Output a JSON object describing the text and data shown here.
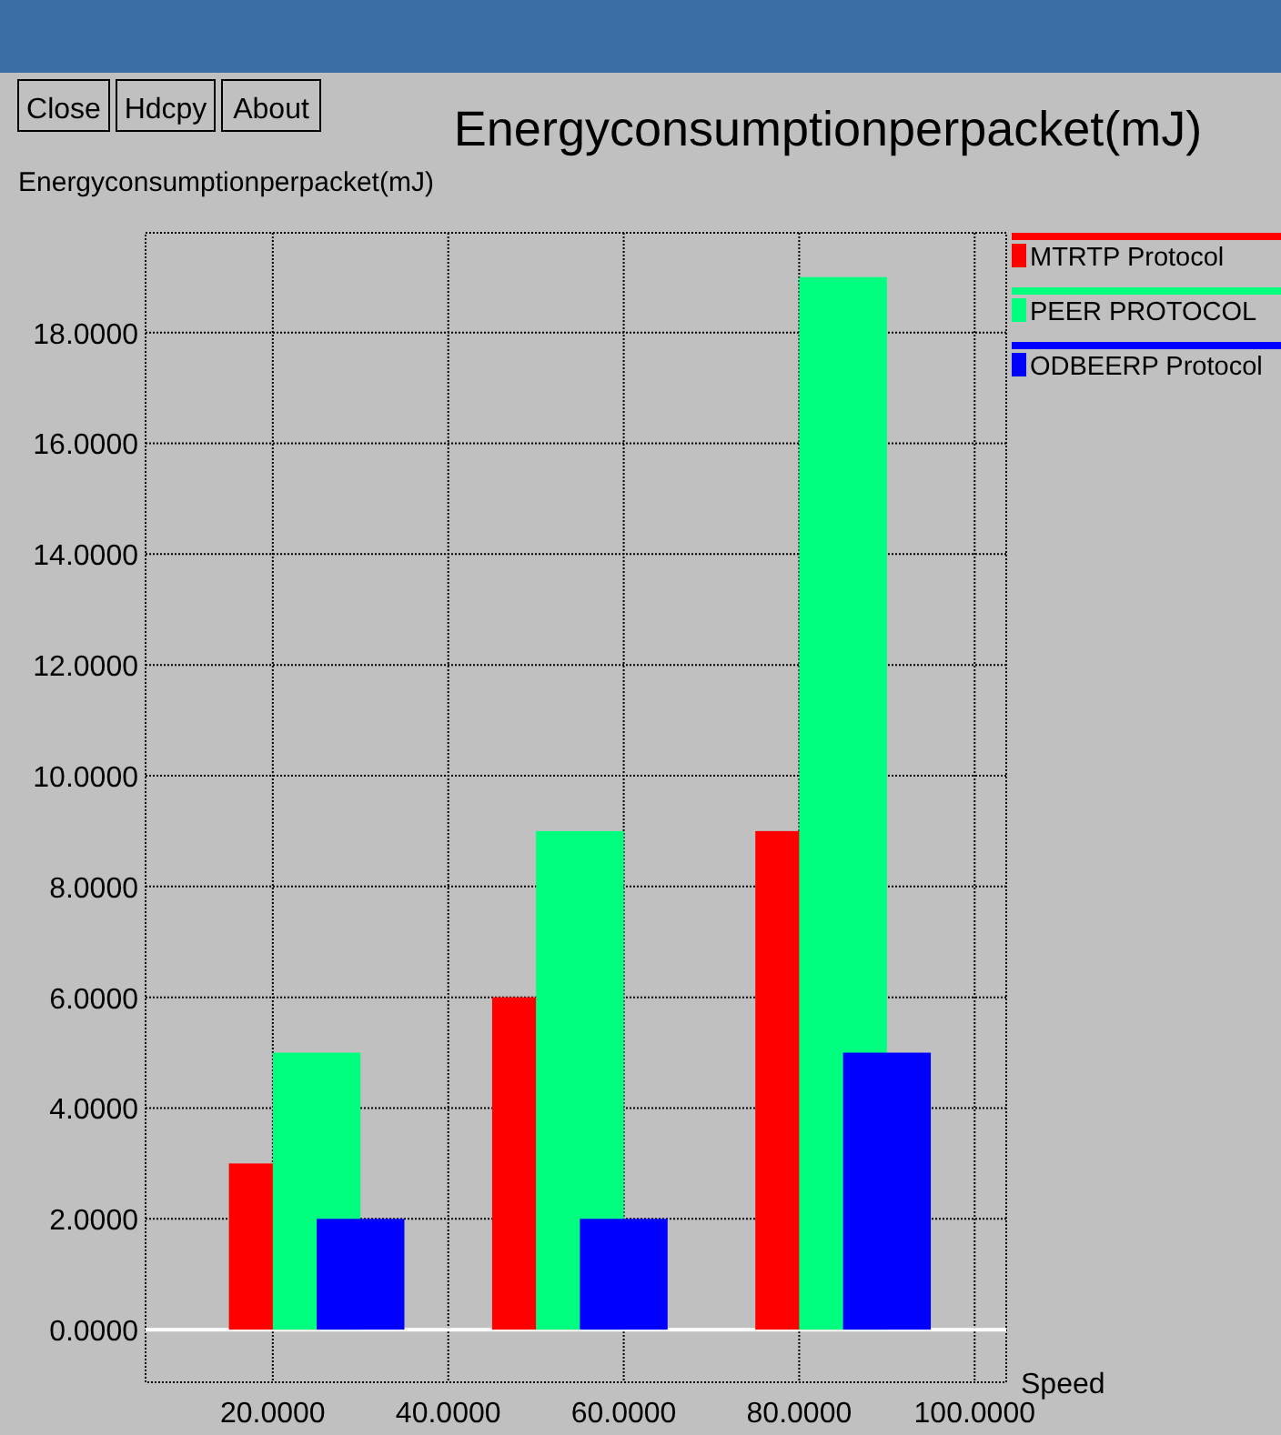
{
  "chart_data": {
    "type": "bar",
    "title": "Energyconsumptionperpacket(mJ)",
    "ylabel": "Energyconsumptionperpacket(mJ)",
    "xlabel": "Speed",
    "annotations": [
      "Close",
      "Hdcpy",
      "About"
    ],
    "series": [
      {
        "name": "MTRTP Protocol",
        "color": "#ff0000",
        "x": [
          20,
          50,
          80
        ],
        "values": [
          3,
          6,
          9
        ]
      },
      {
        "name": "PEER PROTOCOL",
        "color": "#00ff7f",
        "x": [
          25,
          55,
          85
        ],
        "values": [
          5,
          9,
          19
        ]
      },
      {
        "name": "ODBEERP Protocol",
        "color": "#0000ff",
        "x": [
          30,
          60,
          90
        ],
        "values": [
          2,
          2,
          5
        ]
      }
    ],
    "xlim": [
      5.5,
      103.6
    ],
    "xticks": [
      {
        "value": 20,
        "label": "20.0000"
      },
      {
        "value": 40,
        "label": "40.0000"
      },
      {
        "value": 60,
        "label": "60.0000"
      },
      {
        "value": 80,
        "label": "80.0000"
      },
      {
        "value": 100,
        "label": "100.0000"
      }
    ],
    "ylim": [
      -0.95,
      19.8
    ],
    "yticks": [
      {
        "value": 0,
        "label": "0.0000"
      },
      {
        "value": 2,
        "label": "2.0000"
      },
      {
        "value": 4,
        "label": "4.0000"
      },
      {
        "value": 6,
        "label": "6.0000"
      },
      {
        "value": 8,
        "label": "8.0000"
      },
      {
        "value": 10,
        "label": "10.0000"
      },
      {
        "value": 12,
        "label": "12.0000"
      },
      {
        "value": 14,
        "label": "14.0000"
      },
      {
        "value": 16,
        "label": "16.0000"
      },
      {
        "value": 18,
        "label": "18.0000"
      }
    ],
    "ref_lines": [
      {
        "axis": "y",
        "value": 0,
        "color": "#ffffff"
      }
    ],
    "grid": true,
    "legend": "top right",
    "line_style": "dotted"
  }
}
